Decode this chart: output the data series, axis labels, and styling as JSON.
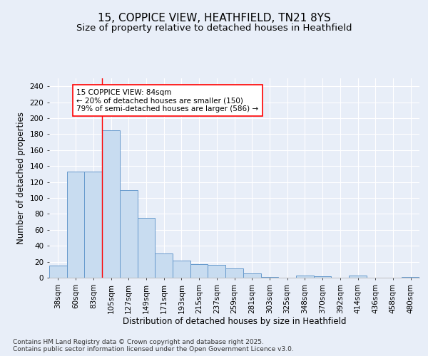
{
  "title_line1": "15, COPPICE VIEW, HEATHFIELD, TN21 8YS",
  "title_line2": "Size of property relative to detached houses in Heathfield",
  "xlabel": "Distribution of detached houses by size in Heathfield",
  "ylabel": "Number of detached properties",
  "categories": [
    "38sqm",
    "60sqm",
    "83sqm",
    "105sqm",
    "127sqm",
    "149sqm",
    "171sqm",
    "193sqm",
    "215sqm",
    "237sqm",
    "259sqm",
    "281sqm",
    "303sqm",
    "325sqm",
    "348sqm",
    "370sqm",
    "392sqm",
    "414sqm",
    "436sqm",
    "458sqm",
    "480sqm"
  ],
  "values": [
    15,
    133,
    133,
    185,
    110,
    75,
    30,
    21,
    17,
    16,
    12,
    5,
    1,
    0,
    3,
    2,
    0,
    3,
    0,
    0,
    1
  ],
  "bar_color": "#c8dcf0",
  "bar_edge_color": "#6699cc",
  "annotation_text": "15 COPPICE VIEW: 84sqm\n← 20% of detached houses are smaller (150)\n79% of semi-detached houses are larger (586) →",
  "vline_x_index": 2,
  "annotation_box_color": "white",
  "annotation_box_edge": "red",
  "vline_color": "red",
  "footer": "Contains HM Land Registry data © Crown copyright and database right 2025.\nContains public sector information licensed under the Open Government Licence v3.0.",
  "ylim": [
    0,
    250
  ],
  "yticks": [
    0,
    20,
    40,
    60,
    80,
    100,
    120,
    140,
    160,
    180,
    200,
    220,
    240
  ],
  "bg_color": "#e8eef8",
  "grid_color": "#ffffff",
  "title_fontsize": 11,
  "subtitle_fontsize": 9.5,
  "axis_label_fontsize": 8.5,
  "tick_fontsize": 7.5,
  "footer_fontsize": 6.5,
  "annotation_fontsize": 7.5
}
